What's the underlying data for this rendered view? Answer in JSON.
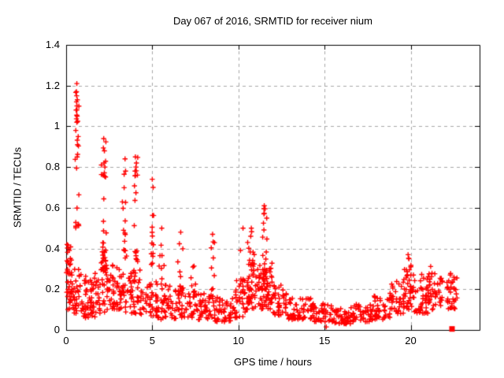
{
  "chart_data": {
    "type": "scatter",
    "title": "Day 067 of 2016, SRMTID for receiver nium",
    "xlabel": "GPS time / hours",
    "ylabel": "SRMTID / TECUs",
    "xlim": [
      0,
      24
    ],
    "ylim": [
      0,
      1.4
    ],
    "grid": "dashed",
    "legend": "none",
    "x_ticks": [
      {
        "v": 0,
        "label": "0"
      },
      {
        "v": 5,
        "label": "5"
      },
      {
        "v": 10,
        "label": "10"
      },
      {
        "v": 15,
        "label": "15"
      },
      {
        "v": 20,
        "label": "20"
      }
    ],
    "y_ticks": [
      {
        "v": 0,
        "label": "0"
      },
      {
        "v": 0.2,
        "label": "0.2"
      },
      {
        "v": 0.4,
        "label": "0.4"
      },
      {
        "v": 0.6,
        "label": "0.6"
      },
      {
        "v": 0.8,
        "label": "0.8"
      },
      {
        "v": 1,
        "label": "1"
      },
      {
        "v": 1.2,
        "label": "1.2"
      },
      {
        "v": 1.4,
        "label": "1.4"
      }
    ],
    "colors": {
      "marker": "#ff0000",
      "grid": "#a8a8a8",
      "border": "#000000",
      "text": "#000000",
      "background": "#ffffff"
    },
    "marker": {
      "shape": "plus",
      "size": 7
    },
    "outlier": {
      "shape": "filled-square",
      "x": 22.4,
      "y": 0.005,
      "size": 7
    },
    "seed": 42,
    "band_segments": [
      [
        0.02,
        0.35,
        0.18,
        0.46,
        30
      ],
      [
        0.05,
        0.55,
        0.1,
        0.2,
        18
      ],
      [
        0.35,
        1.0,
        0.08,
        0.3,
        30
      ],
      [
        1.0,
        1.9,
        0.06,
        0.28,
        60
      ],
      [
        1.9,
        2.6,
        0.08,
        0.35,
        45
      ],
      [
        2.6,
        3.3,
        0.1,
        0.32,
        45
      ],
      [
        3.3,
        4.3,
        0.08,
        0.3,
        55
      ],
      [
        4.3,
        5.3,
        0.07,
        0.25,
        45
      ],
      [
        5.3,
        6.5,
        0.05,
        0.22,
        50
      ],
      [
        6.5,
        7.5,
        0.06,
        0.2,
        45
      ],
      [
        7.5,
        8.4,
        0.05,
        0.18,
        40
      ],
      [
        8.4,
        9.7,
        0.04,
        0.16,
        50
      ],
      [
        9.7,
        10.4,
        0.06,
        0.25,
        35
      ],
      [
        10.4,
        11.3,
        0.1,
        0.35,
        50
      ],
      [
        11.3,
        12.0,
        0.1,
        0.35,
        45
      ],
      [
        12.0,
        12.8,
        0.07,
        0.22,
        40
      ],
      [
        12.8,
        14.2,
        0.05,
        0.16,
        55
      ],
      [
        14.2,
        15.5,
        0.04,
        0.13,
        50
      ],
      [
        15.5,
        16.6,
        0.03,
        0.11,
        45
      ],
      [
        16.6,
        17.8,
        0.04,
        0.13,
        45
      ],
      [
        17.8,
        18.8,
        0.05,
        0.17,
        40
      ],
      [
        18.8,
        19.6,
        0.08,
        0.24,
        35
      ],
      [
        19.6,
        20.2,
        0.1,
        0.32,
        30
      ],
      [
        20.2,
        21.0,
        0.08,
        0.28,
        35
      ],
      [
        21.0,
        21.5,
        0.1,
        0.28,
        25
      ],
      [
        21.5,
        21.85,
        0.12,
        0.26,
        18
      ],
      [
        22.1,
        22.7,
        0.1,
        0.28,
        35
      ]
    ],
    "spikes": [
      [
        0.62,
        0.1,
        0.5,
        1.21,
        20
      ],
      [
        2.2,
        0.12,
        0.35,
        0.94,
        24
      ],
      [
        3.42,
        0.1,
        0.35,
        0.84,
        16
      ],
      [
        4.05,
        0.1,
        0.32,
        0.85,
        18
      ],
      [
        5.0,
        0.08,
        0.28,
        0.74,
        12
      ],
      [
        5.55,
        0.1,
        0.22,
        0.5,
        8
      ],
      [
        6.65,
        0.1,
        0.2,
        0.48,
        9
      ],
      [
        7.4,
        0.12,
        0.15,
        0.38,
        8
      ],
      [
        8.5,
        0.1,
        0.15,
        0.47,
        12
      ],
      [
        10.7,
        0.35,
        0.15,
        0.5,
        22
      ],
      [
        11.5,
        0.15,
        0.2,
        0.61,
        26
      ],
      [
        19.85,
        0.15,
        0.12,
        0.37,
        14
      ],
      [
        21.05,
        0.18,
        0.1,
        0.33,
        14
      ]
    ],
    "peak_points": [
      [
        0.62,
        1.21
      ],
      [
        0.6,
        1.17
      ],
      [
        0.61,
        1.15
      ],
      [
        0.65,
        1.13
      ],
      [
        0.6,
        1.12
      ],
      [
        0.63,
        1.1
      ],
      [
        0.58,
        1.08
      ],
      [
        0.64,
        1.05
      ],
      [
        0.62,
        1.02
      ],
      [
        0.7,
        0.95
      ],
      [
        0.66,
        0.91
      ],
      [
        0.64,
        0.85
      ],
      [
        2.18,
        0.94
      ],
      [
        2.22,
        0.88
      ],
      [
        2.2,
        0.82
      ],
      [
        2.25,
        0.8
      ],
      [
        2.15,
        0.76
      ],
      [
        3.42,
        0.84
      ],
      [
        3.45,
        0.78
      ],
      [
        4.02,
        0.85
      ],
      [
        4.05,
        0.8
      ],
      [
        4.0,
        0.78
      ],
      [
        4.08,
        0.82
      ],
      [
        5.0,
        0.74
      ],
      [
        5.05,
        0.7
      ],
      [
        5.55,
        0.5
      ],
      [
        6.65,
        0.48
      ],
      [
        8.5,
        0.47
      ],
      [
        10.75,
        0.5
      ],
      [
        11.5,
        0.61
      ],
      [
        11.55,
        0.595
      ],
      [
        11.48,
        0.57
      ],
      [
        19.85,
        0.37
      ],
      [
        19.9,
        0.35
      ],
      [
        22.3,
        0.27
      ],
      [
        15.1,
        0.015
      ],
      [
        16.25,
        0.03
      ],
      [
        0.05,
        0.42
      ]
    ]
  }
}
